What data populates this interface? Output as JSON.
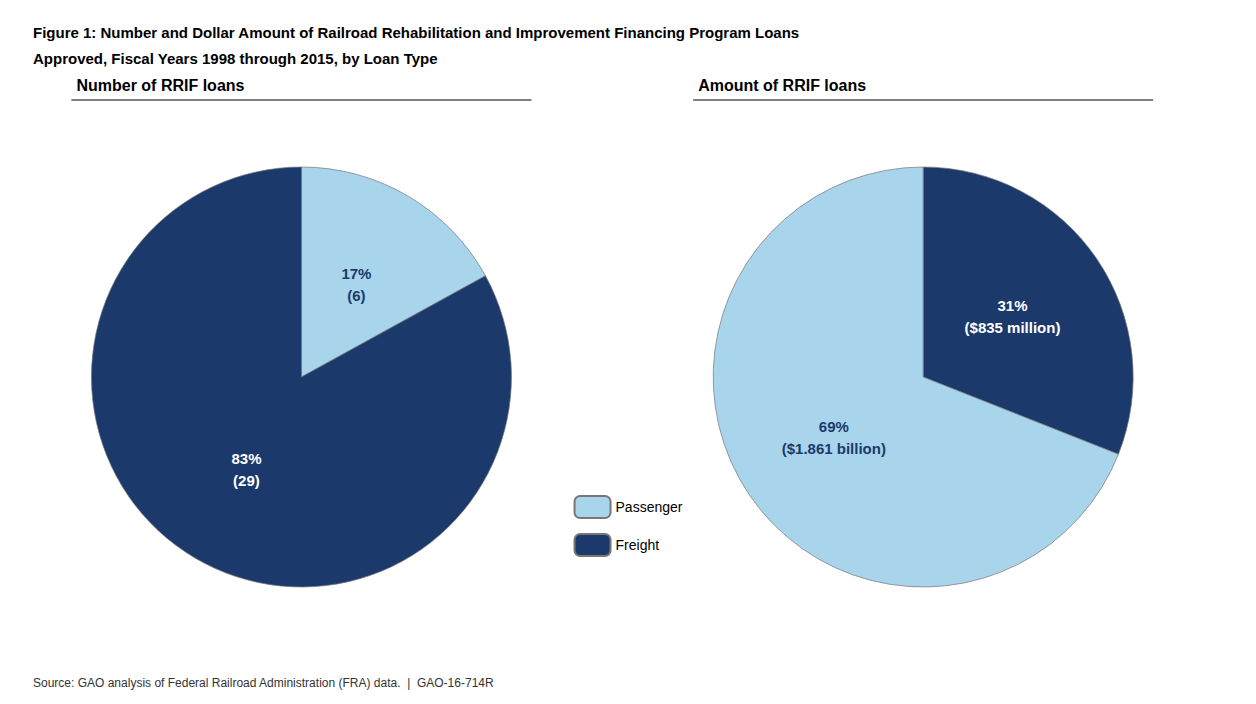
{
  "title": [
    "Figure 1: Number and Dollar Amount of Railroad Rehabilitation and Improvement Financing Program Loans",
    "Approved, Fiscal Years 1998 through 2015, by Loan Type"
  ],
  "annotations": [
    "Source: GAO analysis of Federal Railroad Administration (FRA) data.  |  GAO-16-714R"
  ],
  "legend": "center",
  "chart_data": [
    {
      "type": "pie",
      "title": "Number of RRIF loans",
      "categories": [
        "Passenger",
        "Freight"
      ],
      "values": [
        17,
        83
      ],
      "value_labels": [
        "17%\n(6)",
        "83%\n(29)"
      ],
      "colors": [
        "#A8D4EC",
        "#1B3A6B"
      ],
      "data_labels": true
    },
    {
      "type": "pie",
      "title": "Amount of RRIF loans",
      "categories": [
        "Freight",
        "Passenger"
      ],
      "values": [
        31,
        69
      ],
      "value_labels": [
        "31%\n($835 million)",
        "69%\n($1.861 billion)"
      ],
      "colors": [
        "#1B3A6B",
        "#A8D4EC"
      ],
      "data_labels": true
    }
  ]
}
